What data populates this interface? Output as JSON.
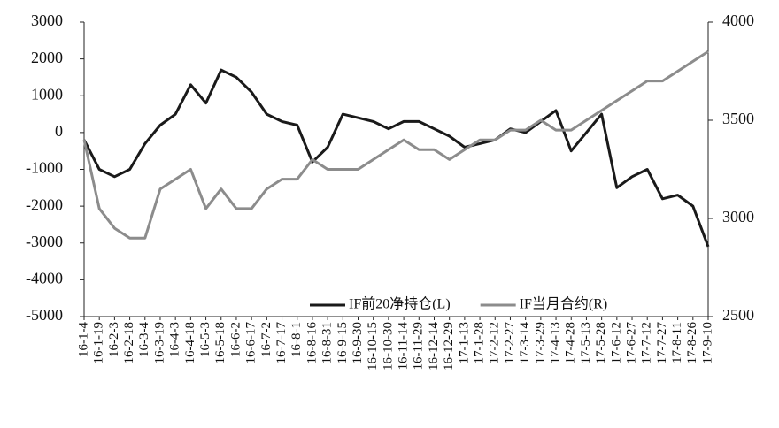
{
  "chart_data": {
    "type": "line",
    "categories": [
      "16-1-4",
      "16-1-19",
      "16-2-3",
      "16-2-18",
      "16-3-4",
      "16-3-19",
      "16-4-3",
      "16-4-18",
      "16-5-3",
      "16-5-18",
      "16-6-2",
      "16-6-17",
      "16-7-2",
      "16-7-17",
      "16-8-1",
      "16-8-16",
      "16-8-31",
      "16-9-15",
      "16-9-30",
      "16-10-15",
      "16-10-30",
      "16-11-14",
      "16-11-29",
      "16-12-14",
      "16-12-29",
      "17-1-13",
      "17-1-28",
      "17-2-12",
      "17-2-27",
      "17-3-14",
      "17-3-29",
      "17-4-13",
      "17-4-28",
      "17-5-13",
      "17-5-28",
      "17-6-12",
      "17-6-27",
      "17-7-12",
      "17-7-27",
      "17-8-11",
      "17-8-26",
      "17-9-10"
    ],
    "series": [
      {
        "name": "IF前20净持仓(L)",
        "color": "#1a1a1a",
        "values": [
          -200,
          -1000,
          -1200,
          -1000,
          -300,
          200,
          500,
          1300,
          800,
          1700,
          1500,
          1100,
          500,
          300,
          200,
          -800,
          -400,
          500,
          400,
          300,
          100,
          300,
          300,
          100,
          -100,
          -400,
          -300,
          -200,
          100,
          0,
          300,
          600,
          -500,
          0,
          500,
          -1500,
          -1200,
          -1000,
          -1800,
          -1700,
          -2000,
          -3100
        ]
      },
      {
        "name": "IF当月合约(R)",
        "color": "#8c8c8c",
        "axis": "y2",
        "values": [
          3400,
          3050,
          2950,
          2900,
          2900,
          3150,
          3200,
          3250,
          3050,
          3150,
          3050,
          3050,
          3150,
          3200,
          3200,
          3300,
          3250,
          3250,
          3250,
          3300,
          3350,
          3400,
          3350,
          3350,
          3300,
          3350,
          3400,
          3400,
          3450,
          3450,
          3500,
          3450,
          3450,
          3500,
          3550,
          3600,
          3650,
          3700,
          3700,
          3750,
          3800,
          3850
        ]
      }
    ],
    "ylim": [
      -5000,
      3000
    ],
    "yticks": [
      -5000,
      -4000,
      -3000,
      -2000,
      -1000,
      0,
      1000,
      2000,
      3000
    ],
    "y2lim": [
      2500,
      4000
    ],
    "y2ticks": [
      2500,
      3000,
      3500,
      4000
    ],
    "legend": "lower right"
  }
}
